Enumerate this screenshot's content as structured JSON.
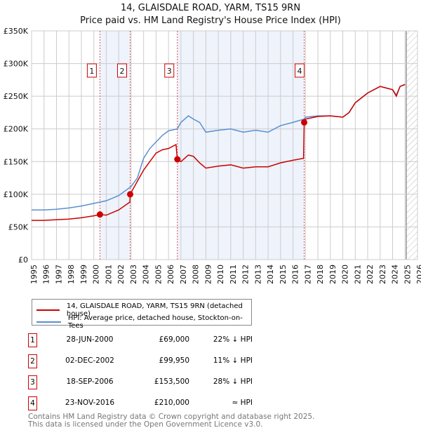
{
  "chart_data": {
    "type": "line",
    "title": "14, GLAISDALE ROAD, YARM, TS15 9RN",
    "subtitle": "Price paid vs. HM Land Registry's House Price Index (HPI)",
    "xlim": [
      1995,
      2026
    ],
    "ylim": [
      0,
      350000
    ],
    "yticks": [
      0,
      50000,
      100000,
      150000,
      200000,
      250000,
      300000,
      350000
    ],
    "ytick_labels": [
      "£0",
      "£50K",
      "£100K",
      "£150K",
      "£200K",
      "£250K",
      "£300K",
      "£350K"
    ],
    "xticks": [
      "1995",
      "1996",
      "1997",
      "1998",
      "1999",
      "2000",
      "2001",
      "2002",
      "2003",
      "2004",
      "2005",
      "2006",
      "2007",
      "2008",
      "2009",
      "2010",
      "2011",
      "2012",
      "2013",
      "2014",
      "2015",
      "2016",
      "2017",
      "2018",
      "2019",
      "2020",
      "2021",
      "2022",
      "2023",
      "2024",
      "2025",
      "2026"
    ],
    "grid": true,
    "shaded_ranges": [
      [
        2000.49,
        2002.92
      ],
      [
        2006.71,
        2016.9
      ]
    ],
    "hatched_from": 2025.1,
    "series": [
      {
        "name": "14, GLAISDALE ROAD, YARM, TS15 9RN (detached house)",
        "color": "#cc0000",
        "x": [
          1995,
          1996,
          1997,
          1998,
          1999,
          2000,
          2000.49,
          2001,
          2002,
          2002.9,
          2002.92,
          2003.5,
          2004,
          2004.5,
          2005,
          2005.5,
          2006,
          2006.6,
          2006.71,
          2007,
          2007.6,
          2008,
          2008.5,
          2009,
          2010,
          2011,
          2012,
          2013,
          2014,
          2015,
          2016,
          2016.85,
          2016.9,
          2017,
          2018,
          2019,
          2020,
          2020.5,
          2021,
          2022,
          2023,
          2024,
          2024.3,
          2024.6,
          2025
        ],
        "y": [
          60000,
          60000,
          61000,
          62000,
          64000,
          67000,
          69000,
          68000,
          76000,
          88000,
          99950,
          120000,
          137000,
          150000,
          163000,
          168000,
          170000,
          176000,
          153500,
          150000,
          160000,
          158000,
          148000,
          140000,
          143000,
          145000,
          140000,
          142000,
          142000,
          148000,
          152000,
          155000,
          210000,
          215000,
          219000,
          220000,
          218000,
          225000,
          240000,
          255000,
          265000,
          260000,
          250000,
          265000,
          268000
        ]
      },
      {
        "name": "HPI: Average price, detached house, Stockton-on-Tees",
        "color": "#5b8fd0",
        "x": [
          1995,
          1996,
          1997,
          1998,
          1999,
          2000,
          2001,
          2002,
          2003,
          2003.5,
          2004,
          2004.5,
          2005,
          2005.5,
          2006,
          2006.7,
          2007,
          2007.6,
          2008,
          2008.5,
          2009,
          2010,
          2011,
          2012,
          2013,
          2014,
          2015,
          2016,
          2016.9,
          2017,
          2018,
          2019,
          2020,
          2020.5,
          2021,
          2022,
          2023,
          2024,
          2024.3,
          2024.6,
          2025
        ],
        "y": [
          76000,
          76000,
          77000,
          79000,
          82000,
          86000,
          90000,
          98000,
          112000,
          125000,
          155000,
          170000,
          180000,
          190000,
          197000,
          200000,
          210000,
          220000,
          215000,
          210000,
          195000,
          198000,
          200000,
          195000,
          198000,
          195000,
          205000,
          210000,
          215000,
          218000,
          220000,
          220000,
          218000,
          225000,
          240000,
          255000,
          265000,
          260000,
          252000,
          265000,
          268000
        ]
      }
    ],
    "markers": [
      {
        "label": "1",
        "x": 2000.49,
        "y": 69000
      },
      {
        "label": "2",
        "x": 2002.92,
        "y": 99950
      },
      {
        "label": "3",
        "x": 2006.71,
        "y": 153500
      },
      {
        "label": "4",
        "x": 2016.9,
        "y": 210000
      }
    ]
  },
  "legend": {
    "property": "14, GLAISDALE ROAD, YARM, TS15 9RN (detached house)",
    "hpi": "HPI: Average price, detached house, Stockton-on-Tees"
  },
  "transactions": [
    {
      "num": "1",
      "date": "28-JUN-2000",
      "price": "£69,000",
      "hpi": "22% ↓ HPI"
    },
    {
      "num": "2",
      "date": "02-DEC-2002",
      "price": "£99,950",
      "hpi": "11% ↓ HPI"
    },
    {
      "num": "3",
      "date": "18-SEP-2006",
      "price": "£153,500",
      "hpi": "28% ↓ HPI"
    },
    {
      "num": "4",
      "date": "23-NOV-2016",
      "price": "£210,000",
      "hpi": "≈ HPI"
    }
  ],
  "footer": {
    "line1": "Contains HM Land Registry data © Crown copyright and database right 2025.",
    "line2": "This data is licensed under the Open Government Licence v3.0."
  }
}
